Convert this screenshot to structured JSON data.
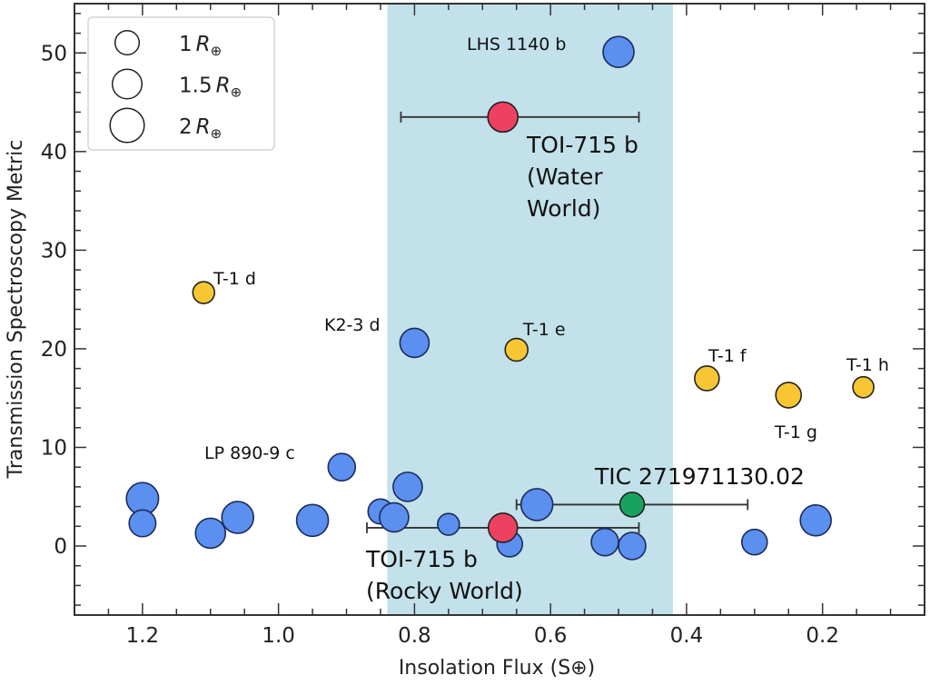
{
  "chart_data": {
    "type": "scatter",
    "xlabel": "Insolation Flux (S⊕)",
    "ylabel": "Transmission Spectroscopy Metric",
    "xlim": [
      1.3,
      0.05
    ],
    "ylim": [
      -7,
      55
    ],
    "x_reversed": true,
    "x_ticks": [
      1.2,
      1.0,
      0.8,
      0.6,
      0.4,
      0.2
    ],
    "x_tick_labels": [
      "1.2",
      "1.0",
      "0.8",
      "0.6",
      "0.4",
      "0.2"
    ],
    "y_ticks": [
      0,
      10,
      20,
      30,
      40,
      50
    ],
    "y_tick_labels": [
      "0",
      "10",
      "20",
      "30",
      "40",
      "50"
    ],
    "grid": false,
    "shaded_region": {
      "x_from": 0.84,
      "x_to": 0.42,
      "color": "#c2e1ea"
    },
    "colors": {
      "other": "#5b8ff0",
      "toi715": "#ee4162",
      "tic": "#17a35e",
      "trappist": "#f8c633"
    },
    "legend": {
      "placement": "top-left",
      "title": "",
      "entries": [
        {
          "label_num": "1",
          "radius_earth": 1
        },
        {
          "label_num": "1.5",
          "radius_earth": 1.5
        },
        {
          "label_num": "2",
          "radius_earth": 2
        }
      ],
      "unit_symbol": "R",
      "unit_sub": "⊕"
    },
    "points": [
      {
        "label": "LHS 1140 b",
        "flux": 0.5,
        "tsm": 50.1,
        "radius_earth": 1.63,
        "group": "other"
      },
      {
        "label": "TOI-715 b\n(Water\nWorld)",
        "flux": 0.67,
        "tsm": 43.5,
        "radius_earth": 1.54,
        "group": "toi715",
        "xerr": [
          0.15,
          0.2
        ]
      },
      {
        "label": "T-1 d",
        "flux": 1.11,
        "tsm": 25.7,
        "radius_earth": 0.81,
        "group": "trappist"
      },
      {
        "label": "K2-3 d",
        "flux": 0.8,
        "tsm": 20.6,
        "radius_earth": 1.45,
        "group": "other"
      },
      {
        "label": "T-1 e",
        "flux": 0.65,
        "tsm": 19.9,
        "radius_earth": 0.88,
        "group": "trappist"
      },
      {
        "label": "T-1 f",
        "flux": 0.37,
        "tsm": 17.0,
        "radius_earth": 1.03,
        "group": "trappist"
      },
      {
        "label": "T-1 g",
        "flux": 0.25,
        "tsm": 15.3,
        "radius_earth": 1.11,
        "group": "trappist"
      },
      {
        "label": "T-1 h",
        "flux": 0.14,
        "tsm": 16.1,
        "radius_earth": 0.75,
        "group": "trappist"
      },
      {
        "label": "LP 890-9 c",
        "flux": 0.907,
        "tsm": 8.0,
        "radius_earth": 1.27,
        "group": "other"
      },
      {
        "label": "",
        "flux": 1.2,
        "tsm": 4.8,
        "radius_earth": 1.77,
        "group": "other"
      },
      {
        "label": "",
        "flux": 1.2,
        "tsm": 2.3,
        "radius_earth": 1.22,
        "group": "other"
      },
      {
        "label": "",
        "flux": 1.1,
        "tsm": 1.3,
        "radius_earth": 1.54,
        "group": "other"
      },
      {
        "label": "",
        "flux": 1.06,
        "tsm": 2.9,
        "radius_earth": 1.73,
        "group": "other"
      },
      {
        "label": "",
        "flux": 0.95,
        "tsm": 2.6,
        "radius_earth": 1.73,
        "group": "other"
      },
      {
        "label": "",
        "flux": 0.85,
        "tsm": 3.5,
        "radius_earth": 1.06,
        "group": "other"
      },
      {
        "label": "",
        "flux": 0.81,
        "tsm": 6.0,
        "radius_earth": 1.45,
        "group": "other"
      },
      {
        "label": "",
        "flux": 0.83,
        "tsm": 2.9,
        "radius_earth": 1.45,
        "group": "other"
      },
      {
        "label": "",
        "flux": 0.75,
        "tsm": 2.2,
        "radius_earth": 0.81,
        "group": "other"
      },
      {
        "label": "",
        "flux": 0.66,
        "tsm": 0.2,
        "radius_earth": 1.11,
        "group": "other"
      },
      {
        "label": "",
        "flux": 0.62,
        "tsm": 4.2,
        "radius_earth": 1.73,
        "group": "other"
      },
      {
        "label": "",
        "flux": 0.52,
        "tsm": 0.4,
        "radius_earth": 1.27,
        "group": "other"
      },
      {
        "label": "",
        "flux": 0.48,
        "tsm": 0.0,
        "radius_earth": 1.27,
        "group": "other"
      },
      {
        "label": "",
        "flux": 0.3,
        "tsm": 0.4,
        "radius_earth": 1.11,
        "group": "other"
      },
      {
        "label": "",
        "flux": 0.21,
        "tsm": 2.6,
        "radius_earth": 1.63,
        "group": "other"
      },
      {
        "label": "TIC 271971130.02",
        "flux": 0.48,
        "tsm": 4.2,
        "radius_earth": 1.03,
        "group": "tic",
        "xerr": [
          0.17,
          0.17
        ]
      },
      {
        "label": "TOI-715 b\n(Rocky World)",
        "flux": 0.67,
        "tsm": 1.85,
        "radius_earth": 1.45,
        "group": "toi715",
        "xerr": [
          0.2,
          0.2
        ]
      }
    ]
  }
}
